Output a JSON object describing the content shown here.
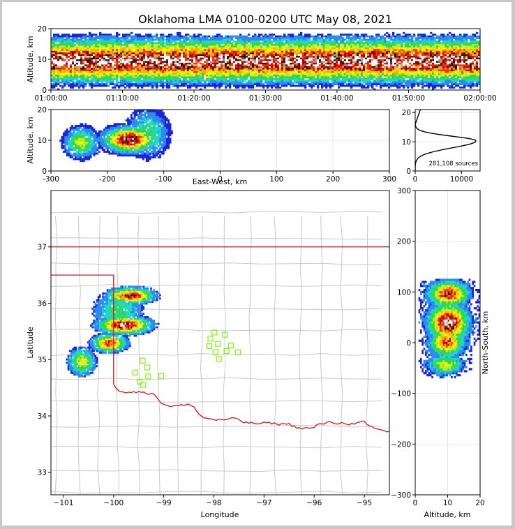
{
  "title": "Oklahoma LMA 0100-0200 UTC May 08, 2021",
  "colors": {
    "state_border": "#e01010",
    "county_lines": "#c8c8c8",
    "station_marker": "#7cfc00",
    "grid": "#e6e6e6"
  },
  "chart_data": [
    {
      "id": "alt_time",
      "type": "heatmap",
      "ylabel": "Altitude, km",
      "xlabel": "",
      "x_ticks": [
        "01:00:00",
        "01:10:00",
        "01:20:00",
        "01:30:00",
        "01:40:00",
        "01:50:00",
        "02:00:00"
      ],
      "x_range_minutes": [
        0,
        60
      ],
      "ylim": [
        0,
        20
      ],
      "y_ticks": [
        0,
        10,
        20
      ],
      "band_center_km": 9.5,
      "band_halfwidth_km": 8
    },
    {
      "id": "alt_ew",
      "type": "heatmap",
      "xlabel": "East-West, km",
      "ylabel": "Altitude, km",
      "xlim": [
        -300,
        300
      ],
      "x_ticks": [
        -300,
        -200,
        -100,
        0,
        100,
        200,
        300
      ],
      "ylim": [
        0,
        20
      ],
      "y_ticks": [
        0,
        10,
        20
      ],
      "clusters": [
        {
          "center_x": -162,
          "center_alt": 10.0,
          "sigma_x": 26,
          "sigma_alt": 2.3,
          "weight": 1.0
        },
        {
          "center_x": -248,
          "center_alt": 9.0,
          "sigma_x": 17,
          "sigma_alt": 2.8,
          "weight": 0.5
        },
        {
          "center_x": -130,
          "center_alt": 12.0,
          "sigma_x": 22,
          "sigma_alt": 4.5,
          "weight": 0.35
        }
      ]
    },
    {
      "id": "alt_hist",
      "type": "line",
      "xlim": [
        0,
        14000
      ],
      "x_ticks": [
        0,
        10000
      ],
      "ylim": [
        0,
        21
      ],
      "y_ticks": [
        0,
        10,
        20
      ],
      "peak_source_count": 13100,
      "peak_altitude_km": 10.3,
      "annotation": "281,108 sources"
    },
    {
      "id": "plan_view",
      "type": "heatmap",
      "xlabel": "Longitude",
      "ylabel": "Latitude",
      "xlim": [
        -101.25,
        -94.5
      ],
      "ylim": [
        32.6,
        38.0
      ],
      "x_ticks": [
        -101,
        -100,
        -99,
        -98,
        -97,
        -96,
        -95
      ],
      "y_ticks": [
        33,
        34,
        35,
        36,
        37
      ],
      "clusters": [
        {
          "lon": -99.8,
          "lat": 35.6,
          "sigma_lon": 0.3,
          "sigma_lat": 0.09,
          "weight": 1.0
        },
        {
          "lon": -99.67,
          "lat": 36.12,
          "sigma_lon": 0.27,
          "sigma_lat": 0.08,
          "weight": 0.9
        },
        {
          "lon": -100.1,
          "lat": 35.28,
          "sigma_lon": 0.2,
          "sigma_lat": 0.09,
          "weight": 0.8
        },
        {
          "lon": -100.65,
          "lat": 34.95,
          "sigma_lon": 0.16,
          "sigma_lat": 0.14,
          "weight": 0.55
        },
        {
          "lon": -99.92,
          "lat": 35.85,
          "sigma_lon": 0.3,
          "sigma_lat": 0.22,
          "weight": 0.35
        }
      ],
      "stations": [
        [
          -97.99,
          35.48
        ],
        [
          -97.78,
          35.44
        ],
        [
          -98.07,
          35.37
        ],
        [
          -97.92,
          35.28
        ],
        [
          -98.09,
          35.24
        ],
        [
          -97.66,
          35.25
        ],
        [
          -97.75,
          35.15
        ],
        [
          -97.97,
          35.13
        ],
        [
          -97.52,
          35.13
        ],
        [
          -97.9,
          35.01
        ],
        [
          -99.42,
          34.98
        ],
        [
          -99.33,
          34.86
        ],
        [
          -99.57,
          34.77
        ],
        [
          -99.31,
          34.7
        ],
        [
          -99.05,
          34.71
        ],
        [
          -99.48,
          34.61
        ],
        [
          -99.41,
          34.55
        ]
      ]
    },
    {
      "id": "alt_ns",
      "type": "heatmap",
      "xlabel": "Altitude, km",
      "ylabel": "North-South, km",
      "xlim": [
        0,
        20
      ],
      "x_ticks": [
        0,
        10,
        20
      ],
      "ylim": [
        -300,
        300
      ],
      "y_ticks": [
        -300,
        -200,
        -100,
        0,
        100,
        200,
        300
      ],
      "clusters": [
        {
          "center_alt": 10.0,
          "center_ns": 95,
          "sigma_alt": 3.5,
          "sigma_ns": 14,
          "weight": 0.9
        },
        {
          "center_alt": 10.0,
          "center_ns": 38,
          "sigma_alt": 3.5,
          "sigma_ns": 22,
          "weight": 1.0
        },
        {
          "center_alt": 9.5,
          "center_ns": 0,
          "sigma_alt": 3.0,
          "sigma_ns": 16,
          "weight": 0.8
        },
        {
          "center_alt": 9.0,
          "center_ns": -45,
          "sigma_alt": 3.0,
          "sigma_ns": 11,
          "weight": 0.55
        }
      ]
    }
  ]
}
